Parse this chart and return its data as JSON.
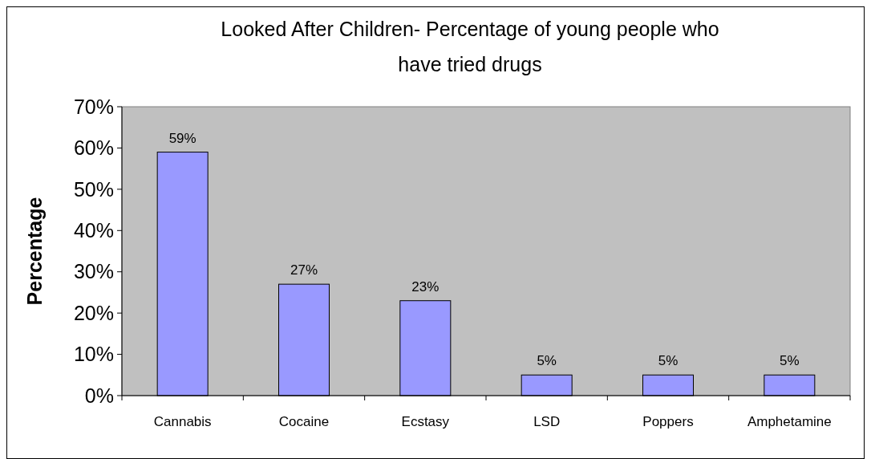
{
  "chart_data": {
    "type": "bar",
    "title": "Looked After Children- Percentage of young people who have tried drugs",
    "ylabel": "Percentage",
    "categories": [
      "Cannabis",
      "Cocaine",
      "Ecstasy",
      "LSD",
      "Poppers",
      "Amphetamine"
    ],
    "values": [
      59,
      27,
      23,
      5,
      5,
      5
    ],
    "color": "#9999ff",
    "value_labels": [
      "59%",
      "27%",
      "23%",
      "5%",
      "5%",
      "5%"
    ],
    "ylim": [
      0,
      70
    ],
    "yticks": [
      {
        "value": 0,
        "label": "0%"
      },
      {
        "value": 10,
        "label": "10%"
      },
      {
        "value": 20,
        "label": "20%"
      },
      {
        "value": 30,
        "label": "30%"
      },
      {
        "value": 40,
        "label": "40%"
      },
      {
        "value": 50,
        "label": "50%"
      },
      {
        "value": 60,
        "label": "60%"
      },
      {
        "value": 70,
        "label": "70%"
      }
    ]
  }
}
